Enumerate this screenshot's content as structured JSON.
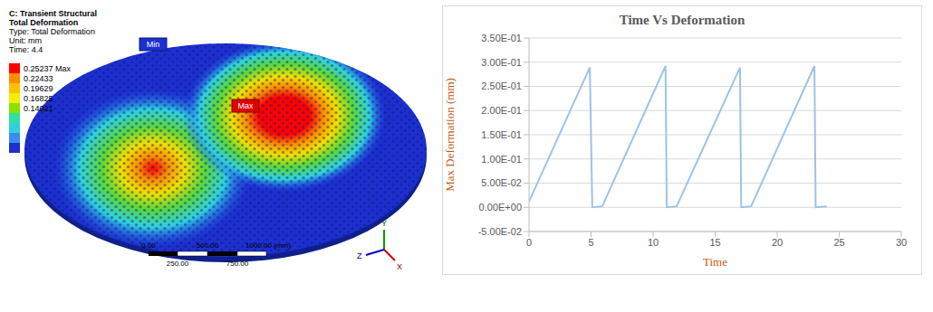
{
  "simulation": {
    "header": [
      "C: Transient Structural",
      "Total Deformation",
      "Type: Total Deformation",
      "Unit: mm",
      "Time: 4.4"
    ],
    "legend": [
      {
        "label": "0.25237 Max",
        "color": "#ff0000"
      },
      {
        "label": "0.22433",
        "color": "#ff8c00"
      },
      {
        "label": "0.19629",
        "color": "#ffc000"
      },
      {
        "label": "0.16825",
        "color": "#f0f000"
      },
      {
        "label": "0.14021",
        "color": "#8ee000"
      }
    ],
    "min_label": "Min",
    "max_label": "Max",
    "scale": {
      "top": [
        "0.00",
        "500.00",
        "1000.00 (mm)"
      ],
      "bottom": [
        "250.00",
        "750.00"
      ]
    },
    "triad": [
      "Y",
      "Z",
      "X"
    ]
  },
  "chart_data": {
    "type": "line",
    "title": "Time Vs Deformation",
    "x_label": "Time",
    "y_label": "Max Deformation (mm)",
    "x": [
      0,
      4.9,
      5.1,
      5.9,
      11,
      11.1,
      11.9,
      17,
      17.1,
      17.9,
      23,
      23.1,
      24
    ],
    "values": [
      0.012,
      0.289,
      0,
      0.002,
      0.292,
      0,
      0.002,
      0.289,
      0,
      0.002,
      0.292,
      0,
      0.002
    ],
    "color": "#9dc3e6",
    "xlim": [
      0,
      30
    ],
    "xticks": [
      0,
      5,
      10,
      15,
      20,
      25,
      30
    ],
    "ylim": [
      -0.05,
      0.35
    ],
    "yticks": [
      {
        "value": -0.05,
        "label": "-5.00E-02"
      },
      {
        "value": 0,
        "label": "0.00E+00"
      },
      {
        "value": 0.05,
        "label": "5.00E-02"
      },
      {
        "value": 0.1,
        "label": "1.00E-01"
      },
      {
        "value": 0.15,
        "label": "1.50E-01"
      },
      {
        "value": 0.2,
        "label": "2.00E-01"
      },
      {
        "value": 0.25,
        "label": "2.50E-01"
      },
      {
        "value": 0.3,
        "label": "3.00E-01"
      },
      {
        "value": 0.35,
        "label": "3.50E-01"
      }
    ],
    "grid": true
  }
}
